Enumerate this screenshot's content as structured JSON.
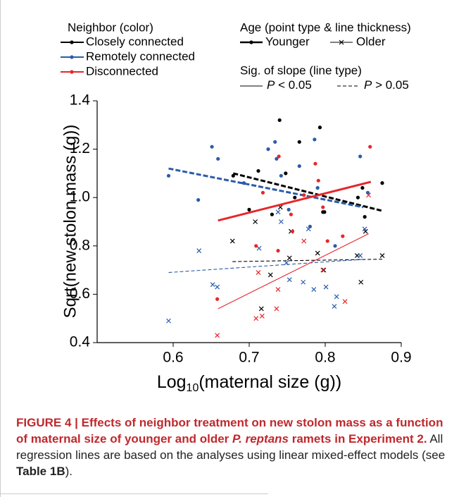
{
  "chart_data": {
    "type": "scatter",
    "xlabel": {
      "main": "Log",
      "sub": "10",
      "rest": "(maternal size (g))"
    },
    "ylabel": "Sqrt(new stolon mass (g))",
    "xlim": [
      0.5,
      0.9
    ],
    "ylim": [
      0.4,
      1.4
    ],
    "xticks": [
      0.6,
      0.7,
      0.8,
      0.9
    ],
    "yticks": [
      0.4,
      0.6,
      0.8,
      {
        "value": 1,
        "label": "1.0"
      },
      1.2,
      1.4
    ],
    "neighbor_legend_title": "Neighbor (color)",
    "age_legend_title": "Age (point type & line thickness)",
    "age_legend": [
      "Younger",
      "Older"
    ],
    "sig_legend_title": "Sig. of slope (line type)",
    "sig_legend": [
      {
        "symbol": "P",
        "rest": "< 0.05"
      },
      {
        "symbol": "P",
        "rest": "> 0.05"
      }
    ],
    "groups": [
      {
        "name": "Closely connected",
        "color": "#000000",
        "younger": {
          "x": [
            0.679,
            0.7,
            0.712,
            0.73,
            0.74,
            0.748,
            0.76,
            0.766,
            0.793,
            0.797,
            0.799,
            0.843,
            0.849,
            0.852,
            0.875
          ],
          "y": [
            1.09,
            0.95,
            1.11,
            0.93,
            1.32,
            1.1,
            1.0,
            1.23,
            1.29,
            0.94,
            0.94,
            1.0,
            1.04,
            0.92,
            1.06
          ],
          "fit": {
            "x": [
              0.679,
              0.875
            ],
            "y": [
              1.1,
              0.945
            ],
            "significant": false
          }
        },
        "older": {
          "x": [
            0.678,
            0.708,
            0.716,
            0.728,
            0.741,
            0.753,
            0.755,
            0.79,
            0.798,
            0.842,
            0.847,
            0.853,
            0.875
          ],
          "y": [
            0.82,
            0.9,
            0.54,
            0.68,
            0.96,
            0.75,
            0.86,
            0.77,
            0.7,
            0.76,
            0.65,
            0.86,
            0.76
          ],
          "fit": {
            "x": [
              0.678,
              0.875
            ],
            "y": [
              0.735,
              0.745
            ],
            "significant": false
          }
        }
      },
      {
        "name": "Remotely connected",
        "color": "#2a5caa",
        "younger": {
          "x": [
            0.594,
            0.633,
            0.651,
            0.659,
            0.693,
            0.725,
            0.734,
            0.736,
            0.742,
            0.752,
            0.766,
            0.78,
            0.786,
            0.79,
            0.813,
            0.846,
            0.856
          ],
          "y": [
            1.09,
            0.99,
            1.21,
            1.16,
            1.06,
            1.2,
            1.23,
            1.16,
            1.09,
            0.95,
            1.13,
            0.88,
            1.24,
            1.04,
            0.8,
            1.17,
            1.02
          ],
          "fit": {
            "x": [
              0.594,
              0.85
            ],
            "y": [
              1.12,
              0.96
            ],
            "significant": false
          }
        },
        "older": {
          "x": [
            0.594,
            0.634,
            0.652,
            0.658,
            0.713,
            0.738,
            0.742,
            0.749,
            0.753,
            0.771,
            0.778,
            0.785,
            0.801,
            0.812,
            0.815,
            0.846,
            0.852
          ],
          "y": [
            0.49,
            0.78,
            0.64,
            0.63,
            0.79,
            0.94,
            0.9,
            0.73,
            0.66,
            0.65,
            0.87,
            0.62,
            0.63,
            0.55,
            0.59,
            0.76,
            0.87
          ],
          "fit": {
            "x": [
              0.594,
              0.853
            ],
            "y": [
              0.69,
              0.745
            ],
            "significant": false
          }
        }
      },
      {
        "name": "Disconnected",
        "color": "#e8262a",
        "younger": {
          "x": [
            0.658,
            0.709,
            0.718,
            0.738,
            0.739,
            0.755,
            0.757,
            0.772,
            0.787,
            0.791,
            0.797,
            0.803,
            0.823,
            0.859
          ],
          "y": [
            0.58,
            0.8,
            1.02,
            0.78,
            1.17,
            0.93,
            0.86,
            1.01,
            1.14,
            1.07,
            0.96,
            0.82,
            0.84,
            1.21
          ],
          "fit": {
            "x": [
              0.659,
              0.86
            ],
            "y": [
              0.905,
              1.065
            ],
            "significant": true
          }
        },
        "older": {
          "x": [
            0.658,
            0.709,
            0.717,
            0.712,
            0.736,
            0.738,
            0.772,
            0.797,
            0.826,
            0.857
          ],
          "y": [
            0.43,
            0.5,
            0.51,
            0.69,
            0.54,
            0.62,
            0.82,
            0.7,
            0.57,
            1.01
          ],
          "fit": {
            "x": [
              0.659,
              0.857
            ],
            "y": [
              0.54,
              0.85
            ],
            "significant": true
          }
        }
      }
    ]
  },
  "caption": [
    {
      "text": "FIGURE 4 | Effects of neighbor treatment on new stolon mass as a function of maternal size of younger and older ",
      "bold": true,
      "italic": false
    },
    {
      "text": "P. reptans",
      "bold": true,
      "italic": true
    },
    {
      "text": " ramets in Experiment 2.",
      "bold": true,
      "italic": false
    },
    {
      "text": " All regression lines are based on the analyses using linear mixed-effect models (see ",
      "bold": false,
      "italic": false
    },
    {
      "text": "Table 1B",
      "bold": true,
      "italic": false
    },
    {
      "text": ").",
      "bold": false,
      "italic": false
    }
  ]
}
